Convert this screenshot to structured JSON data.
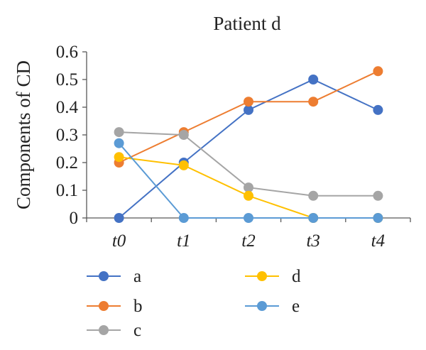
{
  "chart_data": {
    "type": "line",
    "title": "Patient d",
    "ylabel": "Components of CD",
    "xlabel": "",
    "x": [
      "t0",
      "t1",
      "t2",
      "t3",
      "t4"
    ],
    "ylim": [
      0,
      0.6
    ],
    "yticks": [
      "0",
      "0.1",
      "0.2",
      "0.3",
      "0.4",
      "0.5",
      "0.6"
    ],
    "grid": false,
    "legend_position": "bottom",
    "series": [
      {
        "name": "a",
        "color": "#4472C4",
        "values": [
          0,
          0.2,
          0.39,
          0.5,
          0.39
        ]
      },
      {
        "name": "b",
        "color": "#ED7D31",
        "values": [
          0.2,
          0.31,
          0.42,
          0.42,
          0.53
        ]
      },
      {
        "name": "c",
        "color": "#A5A5A5",
        "values": [
          0.31,
          0.3,
          0.11,
          0.08,
          0.08
        ]
      },
      {
        "name": "d",
        "color": "#FFC000",
        "values": [
          0.22,
          0.19,
          0.08,
          0,
          0
        ]
      },
      {
        "name": "e",
        "color": "#5B9BD5",
        "values": [
          0.27,
          0,
          0,
          0,
          0
        ]
      }
    ]
  }
}
